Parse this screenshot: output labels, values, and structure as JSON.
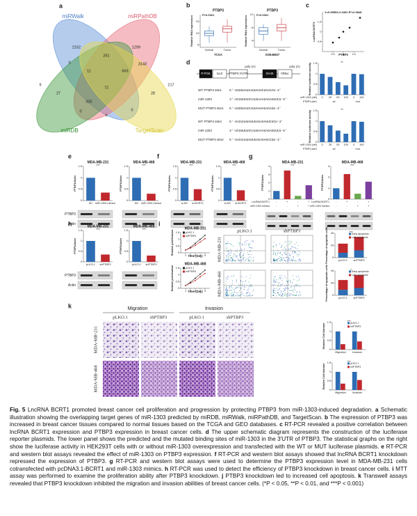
{
  "panel_labels": [
    "a",
    "b",
    "c",
    "d",
    "e",
    "f",
    "g",
    "h",
    "i",
    "j",
    "k"
  ],
  "venn": {
    "sets": [
      "miRWalk",
      "miRPathDB",
      "miRDB",
      "TargetScan"
    ],
    "counts": [
      2152,
      1299,
      9,
      217,
      0,
      261,
      3143,
      11,
      663,
      27,
      72,
      28,
      0,
      325,
      6,
      0
    ]
  },
  "schematic": {
    "elements": [
      "P PGK",
      "luc2",
      "PTBP3 3'UTR",
      "poly (A)",
      "SV40",
      "hRluc",
      "poly (A)"
    ]
  },
  "sequences": [
    {
      "name": "WT PTBP3 site1",
      "seq": "5'-UUUGUAUCAUUAAUCUCUAAU-3'"
    },
    {
      "name": "miR-1303",
      "seq": "3'-UCUUUGUCCAUUAAAGAGAGGUCU-5'"
    },
    {
      "name": "MUT PTBP3 site1",
      "seq": "5'-UUUGUAUCAUUAAUAGAGAUU-3'"
    },
    {
      "name": "WT PTBP3 site2",
      "seq": "5'-GACUAUUAUUGAGAGAUUCUCU-3'"
    },
    {
      "name": "miR-1303",
      "seq": "3'-UCUUUGUCCAUUAAAGAGAGGUCU-5'"
    },
    {
      "name": "MUT PTBP3 site2",
      "seq": "5'-GACUAUUAUUGAGAGAGCCUU-3'"
    }
  ],
  "charts": [
    {
      "type": "box",
      "title": "PTBP3",
      "annotation": "P<0.0001",
      "categories": [
        "Normal",
        "Tumor"
      ],
      "xlabel": "TCGA",
      "ylabel": "Relative RNA expression",
      "boxes": [
        [
          6,
          9,
          10,
          11,
          13
        ],
        [
          6,
          10.5,
          12,
          13,
          16
        ]
      ],
      "colors": [
        "#1f5fa8",
        "#c0282d"
      ],
      "ylim": [
        4,
        18
      ],
      "yticks": [
        5,
        10,
        15
      ]
    },
    {
      "type": "box",
      "title": "PTBP3",
      "annotation": "P<0.0001",
      "categories": [
        "Normal",
        "Tumor"
      ],
      "xlabel": "GSE45827",
      "ylabel": "Relative RNA expression",
      "boxes": [
        [
          4,
          6,
          7,
          8,
          9
        ],
        [
          4,
          7,
          8,
          9,
          11
        ]
      ],
      "colors": [
        "#1f5fa8",
        "#c0282d"
      ],
      "ylim": [
        2,
        12
      ],
      "yticks": [
        4,
        8,
        12
      ]
    },
    {
      "type": "scatter",
      "annotation": "Y=0.9555X-0.0402 R²=0.9848",
      "xlabel": "PTBP3",
      "ylabel": "LncRNA BCRT1",
      "x": [
        0.5,
        0.8,
        1.0,
        1.3,
        1.8
      ],
      "y": [
        0.45,
        0.7,
        1.0,
        1.2,
        1.7
      ],
      "color": "#111",
      "xlim": [
        0,
        2
      ],
      "ylim": [
        0,
        2
      ],
      "xticks": [
        0.5,
        1,
        1.5
      ],
      "yticks": [
        0.5,
        1,
        1.5
      ]
    },
    {
      "type": "bar",
      "ylabel": "Relative luciferase activity",
      "values": [
        1,
        0.85,
        0.6,
        0.45,
        1,
        0.98
      ],
      "colors": [
        "#2e6db4",
        "#2e6db4",
        "#2e6db4",
        "#2e6db4",
        "#2e6db4",
        "#2e6db4"
      ],
      "ylim": [
        0,
        1.5
      ],
      "yticks": [
        0,
        0.5,
        1,
        1.5
      ],
      "marker": "**",
      "conditions": [
        {
          "label": "miR-1303 (nM)",
          "values": [
            "0",
            "25",
            "50",
            "100",
            "0",
            "100"
          ],
          "spans": [
            1,
            1,
            1,
            1,
            1,
            1
          ]
        },
        {
          "label": "PTBP3-site1",
          "values": [
            "wt",
            "mut"
          ],
          "spans": [
            4,
            2
          ]
        }
      ]
    },
    {
      "type": "bar",
      "ylabel": "Relative luciferase activity",
      "values": [
        1,
        0.8,
        0.55,
        0.4,
        1,
        0.97
      ],
      "colors": [
        "#2e6db4",
        "#2e6db4",
        "#2e6db4",
        "#2e6db4",
        "#2e6db4",
        "#2e6db4"
      ],
      "ylim": [
        0,
        1.5
      ],
      "yticks": [
        0,
        0.5,
        1,
        1.5
      ],
      "marker": "**",
      "conditions": [
        {
          "label": "miR-1303 (nM)",
          "values": [
            "0",
            "25",
            "50",
            "100",
            "0",
            "100"
          ],
          "spans": [
            1,
            1,
            1,
            1,
            1,
            1
          ]
        },
        {
          "label": "PTBP3-site2",
          "values": [
            "wt",
            "mut"
          ],
          "spans": [
            4,
            2
          ]
        }
      ]
    },
    {
      "type": "bar",
      "title": "MDA-MB-231",
      "ylabel": "PTBP3/Actin",
      "categories": [
        "NC",
        "miR-1303 mimics"
      ],
      "values": [
        1,
        0.35
      ],
      "colors": [
        "#2e6db4",
        "#c0282d"
      ],
      "ylim": [
        0,
        1.5
      ],
      "yticks": [
        0,
        0.5,
        1,
        1.5
      ],
      "marker": "***"
    },
    {
      "type": "bar",
      "title": "MDA-MB-468",
      "ylabel": "PTBP3/Actin",
      "categories": [
        "NC",
        "miR-1303 mimics"
      ],
      "values": [
        1,
        0.3
      ],
      "colors": [
        "#2e6db4",
        "#c0282d"
      ],
      "ylim": [
        0,
        1.5
      ],
      "yticks": [
        0,
        0.5,
        1,
        1.5
      ],
      "marker": "***"
    },
    {
      "type": "bar",
      "title": "MDA-MB-231",
      "ylabel": "PTBP3/Actin",
      "categories": [
        "si-NC",
        "si-BCRT1"
      ],
      "values": [
        1,
        0.5
      ],
      "colors": [
        "#2e6db4",
        "#c0282d"
      ],
      "ylim": [
        0,
        1.5
      ],
      "yticks": [
        0,
        0.5,
        1,
        1.5
      ],
      "marker": "***"
    },
    {
      "type": "bar",
      "title": "MDA-MB-468",
      "ylabel": "PTBP3/Actin",
      "categories": [
        "si-NC",
        "si-BCRT1"
      ],
      "values": [
        1,
        0.45
      ],
      "colors": [
        "#2e6db4",
        "#c0282d"
      ],
      "ylim": [
        0,
        1.5
      ],
      "yticks": [
        0,
        0.5,
        1,
        1.5
      ],
      "marker": "***"
    },
    {
      "type": "bar",
      "title": "MDA-MB-231",
      "ylabel": "PTBP3/Actin",
      "values": [
        1,
        3.5,
        0.4,
        1.7
      ],
      "colors": [
        "#2e6db4",
        "#c0282d",
        "#6aa84f",
        "#7b3f9e"
      ],
      "ylim": [
        0,
        4
      ],
      "yticks": [
        0,
        1,
        2,
        3,
        4
      ],
      "marker": "***",
      "conditions": [
        {
          "label": "LncRNA BCRT1",
          "values": [
            "-",
            "+",
            "-",
            "+"
          ],
          "spans": [
            1,
            1,
            1,
            1
          ]
        },
        {
          "label": "miR-1303 mimics",
          "values": [
            "-",
            "-",
            "+",
            "+"
          ],
          "spans": [
            1,
            1,
            1,
            1
          ]
        }
      ]
    },
    {
      "type": "bar",
      "title": "MDA-MB-468",
      "ylabel": "PTBP3/Actin",
      "values": [
        1,
        2.3,
        0.5,
        1.6
      ],
      "colors": [
        "#2e6db4",
        "#c0282d",
        "#6aa84f",
        "#7b3f9e"
      ],
      "ylim": [
        0,
        3
      ],
      "yticks": [
        0,
        1,
        2,
        3
      ],
      "marker": "***",
      "conditions": [
        {
          "label": "LncRNA BCRT1",
          "values": [
            "-",
            "+",
            "-",
            "+"
          ],
          "spans": [
            1,
            1,
            1,
            1
          ]
        },
        {
          "label": "miR-1303 mimics",
          "values": [
            "-",
            "-",
            "+",
            "+"
          ],
          "spans": [
            1,
            1,
            1,
            1
          ]
        }
      ]
    },
    {
      "type": "bar",
      "title": "MDA-MB-231",
      "ylabel": "PTBP3/Actin",
      "categories": [
        "pLKO.1",
        "shPTBP3"
      ],
      "values": [
        1,
        0.35
      ],
      "colors": [
        "#2e6db4",
        "#c0282d"
      ],
      "ylim": [
        0,
        1.5
      ],
      "yticks": [
        0,
        0.5,
        1,
        1.5
      ],
      "marker": "***"
    },
    {
      "type": "bar",
      "title": "MDA-MB-468",
      "ylabel": "PTBP3/Actin",
      "categories": [
        "pLKO.1",
        "shPTBP3"
      ],
      "values": [
        1,
        0.3
      ],
      "colors": [
        "#2e6db4",
        "#c0282d"
      ],
      "ylim": [
        0,
        1.5
      ],
      "yticks": [
        0,
        0.5,
        1,
        1.5
      ],
      "marker": "***"
    },
    {
      "type": "line",
      "title": "MDA-MB-231",
      "xlabel": "Time (Day)",
      "ylabel": "Relative proliferation",
      "x": [
        1,
        2,
        3,
        4,
        5
      ],
      "xlim": [
        0,
        6
      ],
      "ylim": [
        0,
        1.5
      ],
      "yticks": [
        0,
        0.5,
        1,
        1.5
      ],
      "xticks": [
        1,
        2,
        3,
        4,
        5
      ],
      "series": [
        {
          "name": "pLKO.1",
          "color": "#222",
          "values": [
            0.2,
            0.4,
            0.7,
            1.0,
            1.3
          ]
        },
        {
          "name": "shPTBP3",
          "color": "#c0282d",
          "values": [
            0.2,
            0.35,
            0.55,
            0.8,
            1.05
          ]
        }
      ]
    },
    {
      "type": "line",
      "title": "MDA-MB-468",
      "xlabel": "Time (Day)",
      "ylabel": "Relative proliferation",
      "x": [
        1,
        2,
        3,
        4,
        5
      ],
      "xlim": [
        0,
        6
      ],
      "ylim": [
        0,
        1.5
      ],
      "yticks": [
        0,
        0.5,
        1,
        1.5
      ],
      "xticks": [
        1,
        2,
        3,
        4,
        5
      ],
      "series": [
        {
          "name": "pLKO.1",
          "color": "#222",
          "values": [
            0.2,
            0.45,
            0.75,
            1.05,
            1.35
          ]
        },
        {
          "name": "shPTBP3",
          "color": "#c0282d",
          "values": [
            0.2,
            0.38,
            0.58,
            0.85,
            1.1
          ]
        }
      ]
    },
    {
      "type": "stacked",
      "ylabel": "Percentage of apoptotic cells",
      "categories": [
        "pLKO.1",
        "shPTBP3"
      ],
      "ylim": [
        0,
        40
      ],
      "yticks": [
        0,
        20,
        40
      ],
      "marker": "***",
      "series": [
        {
          "name": "Early apoptosis",
          "color": "#2e6db4",
          "values": [
            8,
            12
          ]
        },
        {
          "name": "Late apoptosis",
          "color": "#c0282d",
          "values": [
            15,
            22
          ]
        }
      ]
    },
    {
      "type": "stacked",
      "ylabel": "Percentage of apoptotic cells",
      "categories": [
        "pLKO.1",
        "shPTBP3"
      ],
      "ylim": [
        0,
        40
      ],
      "yticks": [
        0,
        20,
        40
      ],
      "marker": "*",
      "series": [
        {
          "name": "Early apoptosis",
          "color": "#2e6db4",
          "values": [
            9,
            12
          ]
        },
        {
          "name": "Late apoptosis",
          "color": "#c0282d",
          "values": [
            16,
            21
          ]
        }
      ]
    },
    {
      "type": "grouped",
      "ylabel": "Relative Cell Number",
      "categories": [
        "Migration",
        "Invasion"
      ],
      "ylim": [
        0,
        1.5
      ],
      "yticks": [
        0,
        0.5,
        1,
        1.5
      ],
      "marker": "***",
      "series": [
        {
          "name": "pLKO.1",
          "color": "#2e6db4",
          "values": [
            1,
            1
          ]
        },
        {
          "name": "shPTBP3",
          "color": "#c0282d",
          "values": [
            0.3,
            0.45
          ]
        }
      ]
    },
    {
      "type": "grouped",
      "ylabel": "Relative Cell Number",
      "categories": [
        "Migration",
        "Invasion"
      ],
      "ylim": [
        0,
        1.5
      ],
      "yticks": [
        0,
        0.5,
        1,
        1.5
      ],
      "marker": "***",
      "series": [
        {
          "name": "pLKO.1",
          "color": "#2e6db4",
          "values": [
            1,
            1
          ]
        },
        {
          "name": "shPTBP3",
          "color": "#c0282d",
          "values": [
            0.35,
            0.55
          ]
        }
      ]
    }
  ],
  "blots": {
    "labels": [
      "PTBP3",
      "Actin"
    ]
  },
  "flow": {
    "conditions": [
      "pLKO.1",
      "shPTBP3"
    ],
    "cells": [
      "MDA-MB-231",
      "MDA-MB-468"
    ]
  },
  "transwell": {
    "assays": [
      "Migration",
      "Invasion"
    ],
    "conditions": [
      "pLKO.1",
      "shPTBP3",
      "pLKO.1",
      "shPTBP3"
    ],
    "cells": [
      "MDA-MB-231",
      "MDA-MB-468"
    ]
  },
  "caption": [
    {
      "text": "Fig. 5",
      "bold": true
    },
    {
      "text": " LncRNA BCRT1 promoted breast cancer cell proliferation and progression by protecting PTBP3 from miR-1303-induced degradation. ",
      "bold": false
    },
    {
      "text": "a",
      "bold": true
    },
    {
      "text": " Schematic illustration showing the overlapping target genes of miR-1303 predicted by miRDB, miRWalk, miRPathDB, and TargetScan. ",
      "bold": false
    },
    {
      "text": "b",
      "bold": true
    },
    {
      "text": " The expression of PTBP3 was increased in breast cancer tissues compared to normal tissues based on the TCGA and GEO databases. ",
      "bold": false
    },
    {
      "text": "c",
      "bold": true
    },
    {
      "text": " RT-PCR revealed a positive correlation between lncRNA BCRT1 expression and PTBP3 expression in breast cancer cells. ",
      "bold": false
    },
    {
      "text": "d",
      "bold": true
    },
    {
      "text": " The upper schematic diagram represents the construction of the luciferase reporter plasmids. The lower panel shows the predicted and the mutated binding sites of miR-1303 in the 3′UTR of PTBP3. The statistical graphs on the right show the luciferase activity in HEK293T cells with or without miR-1303 overexpression and transfected with the WT or MUT luciferase plasmids. ",
      "bold": false
    },
    {
      "text": "e",
      "bold": true
    },
    {
      "text": " RT-PCR and western blot assays revealed the effect of miR-1303 on PTBP3 expression. ",
      "bold": false
    },
    {
      "text": "f",
      "bold": true
    },
    {
      "text": " RT-PCR and western blot assays showed that lncRNA BCRT1 knockdown repressed the expression of PTBP3. ",
      "bold": false
    },
    {
      "text": "g",
      "bold": true
    },
    {
      "text": " RT-PCR and western blot assays were used to determine the PTBP3 expression level in MDA-MB-231 cells cotransfected with pcDNA3.1-BCRT1 and miR-1303 mimics. ",
      "bold": false
    },
    {
      "text": "h",
      "bold": true
    },
    {
      "text": " RT-PCR was used to detect the efficiency of PTBP3 knockdown in breast cancer cells. ",
      "bold": false
    },
    {
      "text": "i",
      "bold": true
    },
    {
      "text": " MTT assay was performed to examine the proliferation ability after PTBP3 knockdown. ",
      "bold": false
    },
    {
      "text": "j",
      "bold": true
    },
    {
      "text": " PTBP3 knockdown led to increased cell apoptosis. ",
      "bold": false
    },
    {
      "text": "k",
      "bold": true
    },
    {
      "text": " Transwell assays revealed that PTBP3 knockdown inhibited the migration and invasion abilities of breast cancer cells. (*P < 0.05, **P < 0.01, and ***P < 0.001)",
      "bold": false
    }
  ]
}
